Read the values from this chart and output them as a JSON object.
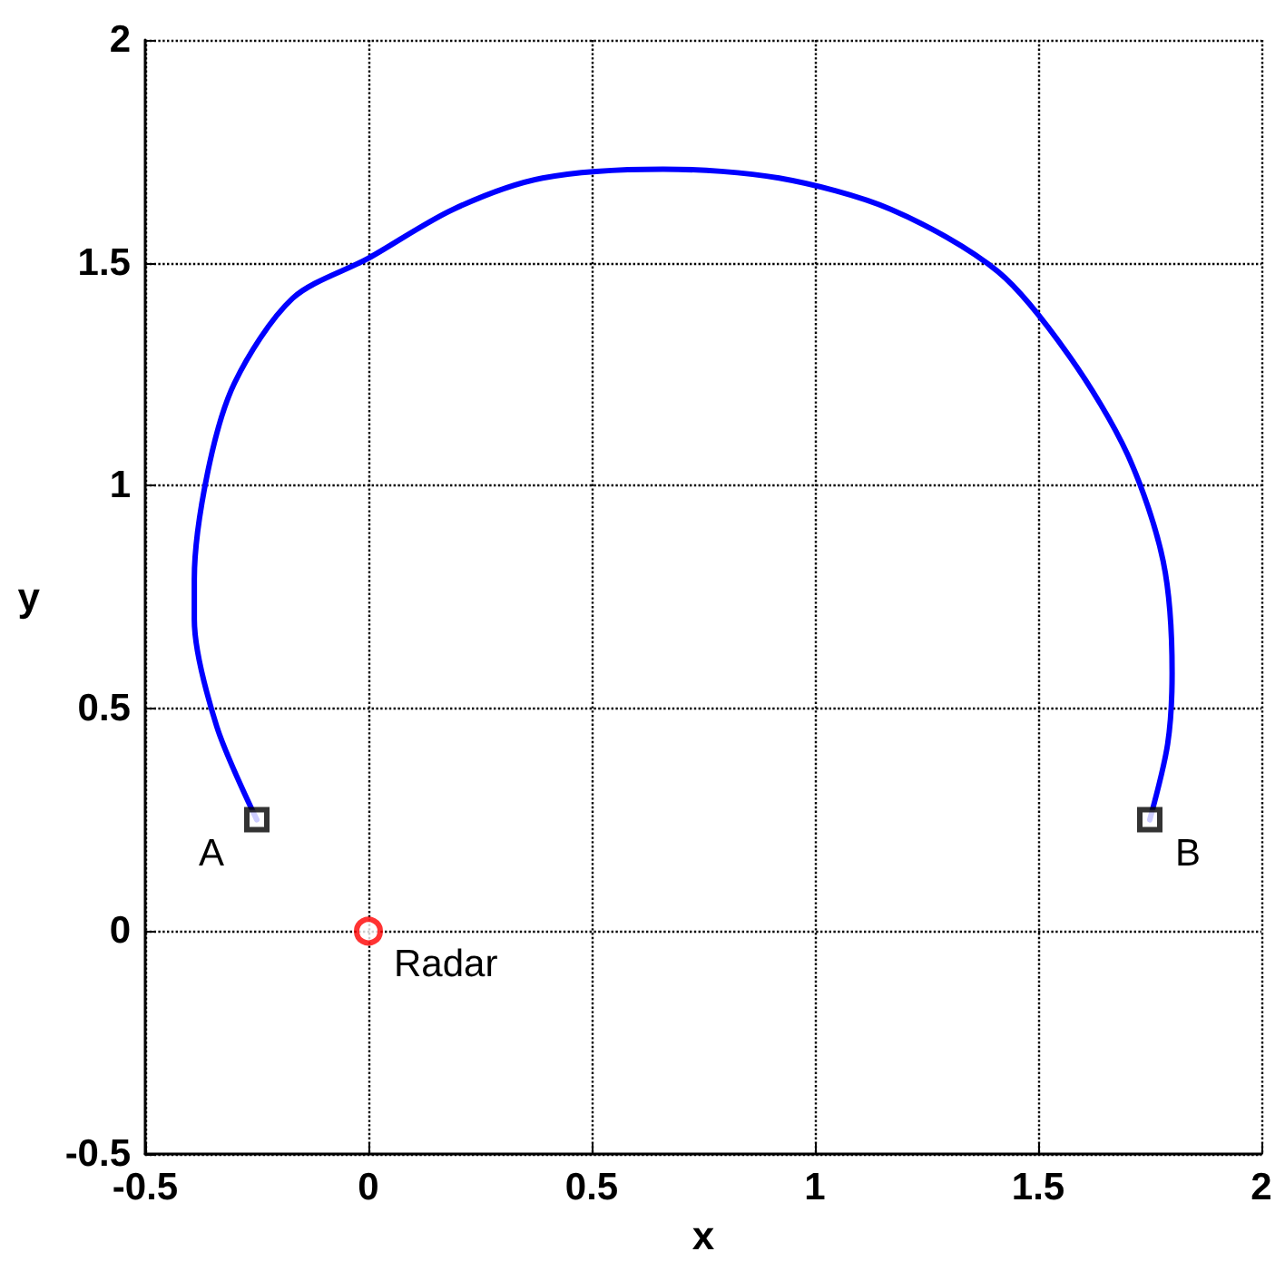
{
  "chart_data": {
    "type": "line",
    "xlabel": "x",
    "ylabel": "y",
    "xlim": [
      -0.5,
      2
    ],
    "xticks": [
      -0.5,
      0,
      0.5,
      1,
      1.5,
      2
    ],
    "ylim": [
      -0.5,
      2
    ],
    "yticks": [
      -0.5,
      0,
      0.5,
      1,
      1.5,
      2
    ],
    "grid": true,
    "series": [
      {
        "color": "#0000ff",
        "marker": "none",
        "line_style": "solid",
        "x": [
          -0.25,
          -0.34,
          -0.39,
          -0.39,
          -0.36,
          -0.3,
          -0.17,
          0,
          0.19,
          0.39,
          0.66,
          0.92,
          1.17,
          1.41,
          1.57,
          1.7,
          1.78,
          1.8,
          1.79,
          1.75
        ],
        "values": [
          0.25,
          0.46,
          0.7,
          0.79,
          1.03,
          1.23,
          1.42,
          1.51,
          1.62,
          1.69,
          1.71,
          1.69,
          1.62,
          1.48,
          1.29,
          1.07,
          0.83,
          0.58,
          0.42,
          0.25
        ]
      },
      {
        "type": "scatter",
        "color": "#000000",
        "marker": "square",
        "x": [
          -0.25,
          1.75
        ],
        "values": [
          0.25,
          0.25
        ]
      },
      {
        "type": "scatter",
        "color": "#ff0000",
        "marker": "circle",
        "x": [
          0
        ],
        "values": [
          0
        ]
      }
    ],
    "annotations": [
      {
        "text": "A",
        "x": -0.25,
        "y": 0.25
      },
      {
        "text": "B",
        "x": 1.75,
        "y": 0.25
      },
      {
        "text": "Radar",
        "x": 0,
        "y": 0
      }
    ]
  }
}
